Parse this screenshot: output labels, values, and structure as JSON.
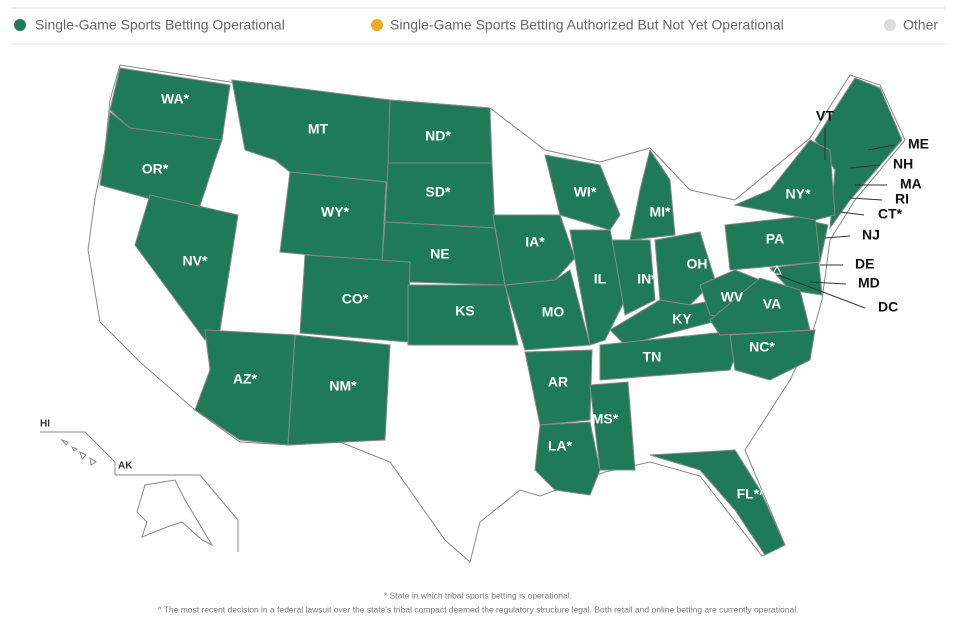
{
  "legend": [
    {
      "label": "Single-Game Sports Betting Operational",
      "color": "#1e7a58"
    },
    {
      "label": "Single-Game Sports Betting Authorized But Not Yet Operational",
      "color": "#f4a81d"
    },
    {
      "label": "Other",
      "color": "#dcdcdc"
    }
  ],
  "states": [
    "WA*",
    "OR*",
    "NV*",
    "MT",
    "ND*",
    "SD*",
    "WY*",
    "NE",
    "CO*",
    "KS",
    "IA*",
    "MO",
    "IL",
    "WI*",
    "MI*",
    "IN*",
    "OH",
    "KY",
    "TN",
    "AR",
    "LA*",
    "MS*",
    "FL*^",
    "PA",
    "NY*",
    "WV",
    "VA",
    "NC*",
    "AZ*",
    "NM*"
  ],
  "callouts": [
    "VT",
    "ME",
    "NH",
    "MA",
    "RI",
    "CT*",
    "NJ",
    "DE",
    "MD",
    "DC"
  ],
  "insets": [
    "HI",
    "AK"
  ],
  "footnotes": [
    "* State in which tribal sports betting is operational.",
    "^ The most recent decision in a federal lawsuit over the state's tribal compact deemed the regulatory structure legal. Both retail and online betting are currently operational."
  ]
}
